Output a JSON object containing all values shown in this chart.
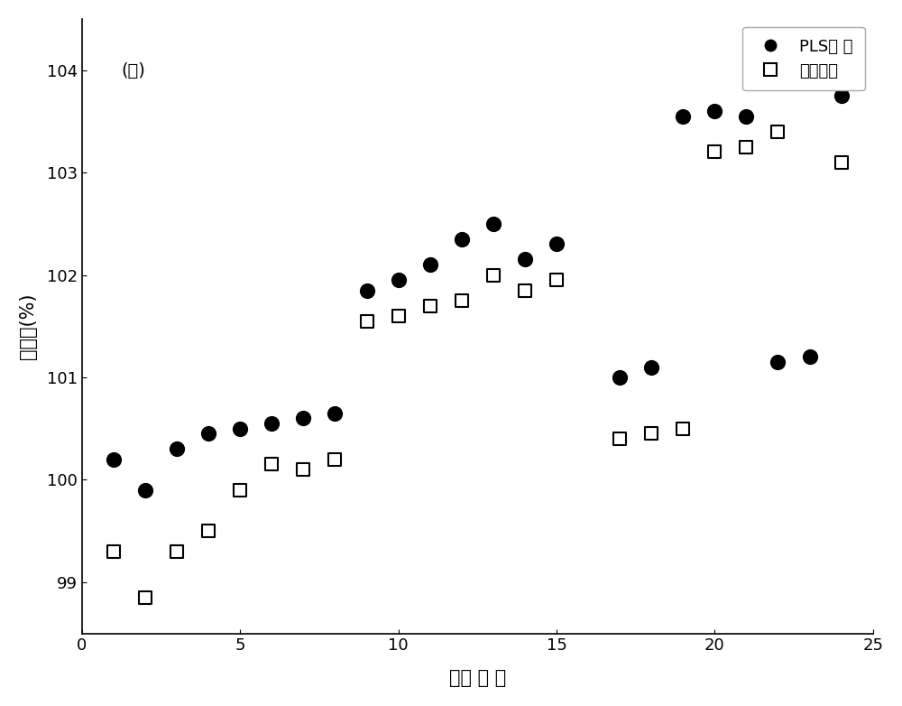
{
  "pls_x": [
    1,
    2,
    3,
    4,
    5,
    6,
    7,
    8,
    9,
    10,
    11,
    12,
    13,
    14,
    15,
    17,
    18,
    19,
    20,
    21,
    22,
    23,
    24
  ],
  "pls_y": [
    100.2,
    99.9,
    100.3,
    100.45,
    100.5,
    100.55,
    100.6,
    100.65,
    101.85,
    101.95,
    102.1,
    102.35,
    102.5,
    102.15,
    102.3,
    101.0,
    101.1,
    103.55,
    103.6,
    103.55,
    101.15,
    101.2,
    103.75
  ],
  "orig_x": [
    1,
    2,
    3,
    4,
    5,
    6,
    7,
    8,
    9,
    10,
    11,
    12,
    13,
    14,
    15,
    17,
    18,
    19,
    20,
    21,
    22,
    24
  ],
  "orig_y": [
    99.3,
    98.85,
    99.3,
    99.5,
    99.9,
    100.15,
    100.1,
    100.2,
    101.55,
    101.6,
    101.7,
    101.75,
    102.0,
    101.85,
    101.95,
    100.4,
    100.45,
    100.5,
    103.2,
    103.25,
    103.4,
    103.1
  ],
  "xlabel": "样品 编 号",
  "ylabel": "回收率(%)",
  "label_annotation": "(Ａ)",
  "legend_pls": "PLS模 型",
  "legend_orig": "原有模型",
  "xlim": [
    0,
    25
  ],
  "ylim": [
    98.5,
    104.5
  ],
  "yticks": [
    99,
    100,
    101,
    102,
    103,
    104
  ],
  "xticks": [
    0,
    5,
    10,
    15,
    20,
    25
  ],
  "background_color": "#ffffff",
  "pls_color": "#000000",
  "orig_color": "#000000",
  "label_fontsize": 15,
  "tick_fontsize": 13,
  "legend_fontsize": 13,
  "annotation_fontsize": 14
}
